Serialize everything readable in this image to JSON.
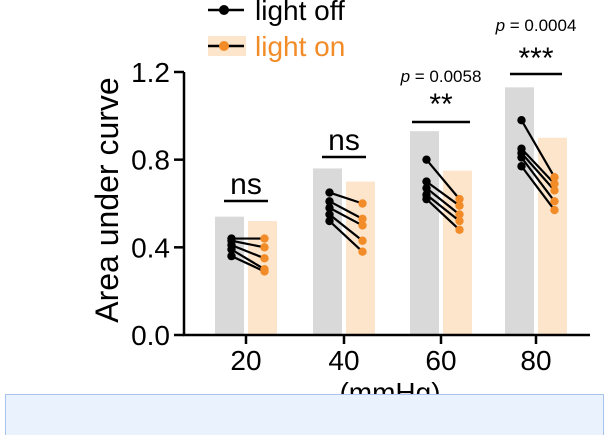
{
  "chart_data": {
    "type": "bar",
    "categories": [
      "20",
      "40",
      "60",
      "80"
    ],
    "xlabel": "(mmHg)",
    "ylabel": "Area under curve",
    "ylim": [
      0,
      1.2
    ],
    "yticks": [
      "0.0",
      "0.4",
      "0.8",
      "1.2"
    ],
    "legend_position": "top-left",
    "series": [
      {
        "name": "light off",
        "color": "#d9d9d9",
        "marker_color": "#000000",
        "values": [
          0.54,
          0.76,
          0.93,
          1.13
        ],
        "points": [
          [
            0.44,
            0.43,
            0.41,
            0.39,
            0.36
          ],
          [
            0.65,
            0.61,
            0.58,
            0.55,
            0.52
          ],
          [
            0.8,
            0.7,
            0.67,
            0.64,
            0.62
          ],
          [
            0.98,
            0.85,
            0.83,
            0.81,
            0.77
          ]
        ]
      },
      {
        "name": "light on",
        "color": "#fde5cc",
        "marker_color": "#f28c28",
        "values": [
          0.52,
          0.7,
          0.75,
          0.9
        ],
        "points": [
          [
            0.44,
            0.4,
            0.35,
            0.3,
            0.29
          ],
          [
            0.6,
            0.53,
            0.5,
            0.43,
            0.38
          ],
          [
            0.62,
            0.59,
            0.55,
            0.52,
            0.48
          ],
          [
            0.72,
            0.69,
            0.66,
            0.61,
            0.57
          ]
        ]
      }
    ],
    "annotations": [
      {
        "category": "20",
        "label": "ns",
        "p": ""
      },
      {
        "category": "40",
        "label": "ns",
        "p": ""
      },
      {
        "category": "60",
        "label": "**",
        "p": "p = 0.0058"
      },
      {
        "category": "80",
        "label": "***",
        "p": "p = 0.0004"
      }
    ]
  }
}
